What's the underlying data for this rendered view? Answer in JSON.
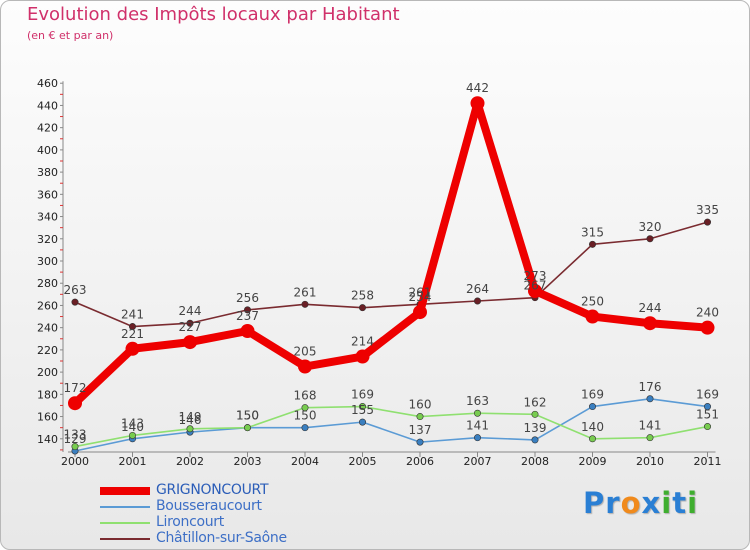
{
  "chart_data": {
    "type": "line",
    "title": "Evolution des Impôts locaux par Habitant",
    "subtitle": "(en € et par an)",
    "xlabel": "",
    "ylabel": "",
    "categories": [
      "2000",
      "2001",
      "2002",
      "2003",
      "2004",
      "2005",
      "2006",
      "2007",
      "2008",
      "2009",
      "2010",
      "2011"
    ],
    "ylim": [
      120,
      460
    ],
    "yticks": [
      140,
      160,
      180,
      200,
      220,
      240,
      260,
      280,
      300,
      320,
      340,
      360,
      380,
      400,
      420,
      440,
      460
    ],
    "grid": false,
    "legend_position": "bottom-left",
    "series": [
      {
        "name": "GRIGNONCOURT",
        "color": "#ee0000",
        "markerColor": "#ee0000",
        "thick": true,
        "values": [
          172,
          221,
          227,
          237,
          205,
          214,
          254,
          442,
          273,
          250,
          244,
          240
        ]
      },
      {
        "name": "Bousseraucourt",
        "color": "#5b9bd5",
        "markerColor": "#3a7fc0",
        "thick": false,
        "values": [
          129,
          140,
          146,
          150,
          150,
          155,
          137,
          141,
          139,
          169,
          176,
          169
        ]
      },
      {
        "name": "Lironcourt",
        "color": "#8fe070",
        "markerColor": "#78cc50",
        "thick": false,
        "values": [
          133,
          143,
          149,
          150,
          168,
          169,
          160,
          163,
          162,
          140,
          141,
          151
        ]
      },
      {
        "name": "Châtillon-sur-Saône",
        "color": "#7a2b30",
        "markerColor": "#6a1f25",
        "thick": false,
        "values": [
          263,
          241,
          244,
          256,
          261,
          258,
          261,
          264,
          267,
          315,
          320,
          335
        ]
      }
    ],
    "labels": [
      {
        "series": 3,
        "values": [
          "263",
          "241",
          "244",
          "256",
          "261",
          "258",
          "261",
          "264",
          "267",
          "315",
          "320",
          "335"
        ]
      },
      {
        "series": 0,
        "values": [
          "172",
          "221",
          "227",
          "237",
          "205",
          "214",
          "254",
          "442",
          "273",
          "250",
          "244",
          "240"
        ]
      },
      {
        "series": 2,
        "values": [
          "133",
          "143",
          "149",
          "150",
          "168",
          "169",
          "160",
          "163",
          "162",
          "140",
          "141",
          "151"
        ]
      },
      {
        "series": 1,
        "values": [
          "129",
          "140",
          "146",
          "150",
          "150",
          "155",
          "137",
          "141",
          "139",
          "169",
          "176",
          "169"
        ]
      }
    ]
  },
  "brand": {
    "letters": [
      {
        "ch": "P",
        "color": "#2a7fd4"
      },
      {
        "ch": "r",
        "color": "#2a7fd4"
      },
      {
        "ch": "o",
        "color": "#f08a1c"
      },
      {
        "ch": "x",
        "color": "#2a7fd4"
      },
      {
        "ch": "i",
        "color": "#3fae2f"
      },
      {
        "ch": "t",
        "color": "#2a7fd4"
      },
      {
        "ch": "i",
        "color": "#3fae2f"
      }
    ]
  }
}
